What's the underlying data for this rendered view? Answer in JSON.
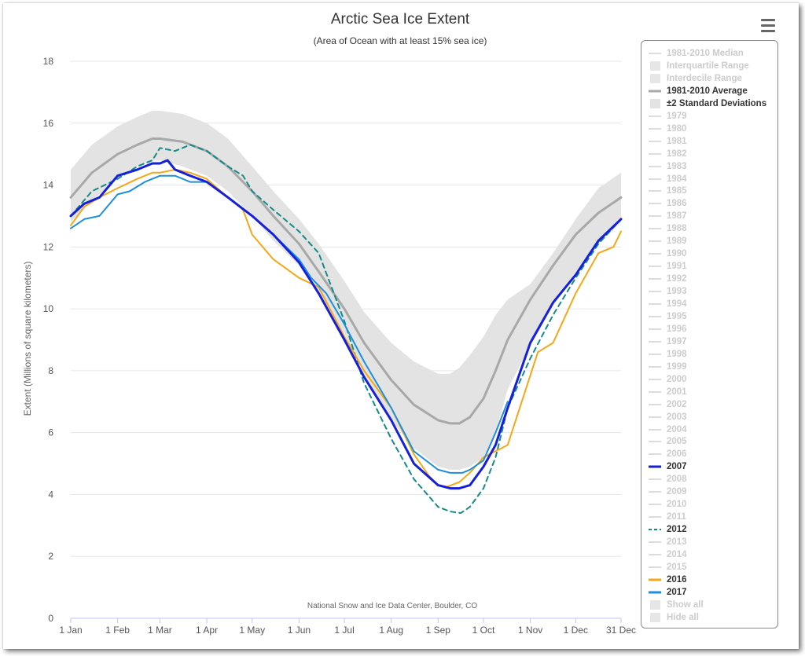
{
  "chart_data": {
    "type": "line",
    "title": "Arctic Sea Ice Extent",
    "subtitle": "(Area of Ocean with at least 15% sea ice)",
    "ylabel": "Extent (Millions of square kilometers)",
    "xlabel": "",
    "credit": "National Snow and Ice Data Center, Boulder, CO",
    "ylim": [
      0,
      18
    ],
    "yticks": [
      0,
      2,
      4,
      6,
      8,
      10,
      12,
      14,
      16,
      18
    ],
    "xlim": [
      1,
      365
    ],
    "xticks": [
      {
        "day": 1,
        "label": "1 Jan"
      },
      {
        "day": 32,
        "label": "1 Feb"
      },
      {
        "day": 60,
        "label": "1 Mar"
      },
      {
        "day": 91,
        "label": "1 Apr"
      },
      {
        "day": 121,
        "label": "1 May"
      },
      {
        "day": 152,
        "label": "1 Jun"
      },
      {
        "day": 182,
        "label": "1 Jul"
      },
      {
        "day": 213,
        "label": "1 Aug"
      },
      {
        "day": 244,
        "label": "1 Sep"
      },
      {
        "day": 274,
        "label": "1 Oct"
      },
      {
        "day": 305,
        "label": "1 Nov"
      },
      {
        "day": 335,
        "label": "1 Dec"
      },
      {
        "day": 365,
        "label": "31 Dec"
      }
    ],
    "grid": true,
    "legend_position": "right",
    "std_band": {
      "name": "±2 Standard Deviations",
      "color": "#e3e3e3",
      "x": [
        1,
        15,
        32,
        45,
        55,
        60,
        75,
        91,
        105,
        121,
        135,
        152,
        165,
        182,
        195,
        213,
        228,
        244,
        252,
        258,
        265,
        274,
        282,
        290,
        305,
        320,
        335,
        350,
        365
      ],
      "upper": [
        14.5,
        15.3,
        15.9,
        16.2,
        16.4,
        16.4,
        16.3,
        16.0,
        15.5,
        14.6,
        13.8,
        12.9,
        12.1,
        10.9,
        9.9,
        8.9,
        8.3,
        7.9,
        7.9,
        8.1,
        8.5,
        9.1,
        9.8,
        10.3,
        10.8,
        11.8,
        12.9,
        13.9,
        14.4
      ],
      "lower": [
        12.8,
        13.5,
        14.2,
        14.6,
        14.8,
        14.8,
        14.6,
        14.3,
        13.8,
        13.0,
        12.2,
        11.4,
        10.5,
        9.2,
        7.9,
        6.4,
        5.5,
        4.9,
        4.8,
        4.8,
        4.9,
        5.2,
        6.0,
        7.4,
        8.8,
        10.1,
        11.2,
        12.1,
        12.8
      ]
    },
    "series": [
      {
        "name": "1981-2010 Average",
        "color": "#a8a8a8",
        "width": 3,
        "dash": "",
        "x": [
          1,
          15,
          32,
          45,
          55,
          60,
          75,
          91,
          105,
          121,
          135,
          152,
          165,
          182,
          195,
          213,
          228,
          244,
          252,
          258,
          265,
          274,
          282,
          290,
          305,
          320,
          335,
          350,
          365
        ],
        "y": [
          13.6,
          14.4,
          15.0,
          15.3,
          15.5,
          15.5,
          15.4,
          15.1,
          14.6,
          13.8,
          13.0,
          12.1,
          11.2,
          10.0,
          8.9,
          7.7,
          6.9,
          6.4,
          6.3,
          6.3,
          6.5,
          7.1,
          8.0,
          9.0,
          10.3,
          11.4,
          12.4,
          13.1,
          13.6
        ]
      },
      {
        "name": "2012",
        "color": "#148a8a",
        "width": 2,
        "dash": "6,5",
        "x": [
          1,
          15,
          32,
          45,
          55,
          60,
          70,
          80,
          91,
          105,
          115,
          121,
          135,
          152,
          165,
          182,
          195,
          213,
          228,
          244,
          252,
          259,
          265,
          274,
          282,
          290,
          305,
          320,
          335,
          350,
          365
        ],
        "y": [
          13.0,
          13.8,
          14.2,
          14.6,
          14.8,
          15.2,
          15.1,
          15.3,
          15.1,
          14.6,
          14.3,
          13.8,
          13.2,
          12.5,
          11.8,
          9.6,
          7.6,
          5.8,
          4.5,
          3.6,
          3.45,
          3.4,
          3.6,
          4.2,
          5.2,
          6.8,
          8.4,
          9.8,
          11.0,
          12.1,
          12.9
        ]
      },
      {
        "name": "2016",
        "color": "#f5a718",
        "width": 2,
        "dash": "",
        "x": [
          1,
          10,
          20,
          32,
          45,
          55,
          60,
          70,
          80,
          91,
          105,
          115,
          121,
          135,
          152,
          165,
          182,
          195,
          213,
          228,
          238,
          244,
          250,
          258,
          265,
          274,
          282,
          290,
          300,
          310,
          320,
          335,
          350,
          360,
          365
        ],
        "y": [
          12.7,
          13.3,
          13.6,
          13.9,
          14.2,
          14.4,
          14.4,
          14.5,
          14.4,
          14.2,
          13.6,
          13.2,
          12.4,
          11.6,
          11.0,
          10.7,
          9.1,
          8.0,
          6.8,
          5.3,
          4.6,
          4.3,
          4.25,
          4.4,
          4.7,
          5.2,
          5.4,
          5.6,
          7.1,
          8.6,
          8.9,
          10.5,
          11.8,
          12.0,
          12.5
        ]
      },
      {
        "name": "2017",
        "color": "#1e8fdc",
        "width": 2,
        "dash": "",
        "x": [
          1,
          10,
          20,
          32,
          40,
          50,
          60,
          70,
          80,
          91,
          105,
          121,
          135,
          152,
          160,
          170,
          182,
          195,
          213,
          228,
          244,
          252,
          260,
          265,
          274,
          282,
          290
        ],
        "y": [
          12.6,
          12.9,
          13.0,
          13.7,
          13.8,
          14.1,
          14.3,
          14.3,
          14.1,
          14.1,
          13.6,
          13.0,
          12.4,
          11.6,
          11.0,
          10.5,
          9.5,
          8.3,
          6.8,
          5.4,
          4.8,
          4.7,
          4.7,
          4.8,
          5.1,
          6.0,
          7.0
        ]
      },
      {
        "name": "2007",
        "color": "#1520dd",
        "width": 3,
        "dash": "",
        "x": [
          1,
          10,
          20,
          32,
          45,
          55,
          60,
          65,
          70,
          80,
          91,
          105,
          121,
          135,
          152,
          165,
          182,
          195,
          213,
          228,
          244,
          252,
          258,
          265,
          274,
          282,
          290,
          305,
          320,
          335,
          350,
          365
        ],
        "y": [
          13.0,
          13.4,
          13.6,
          14.3,
          14.5,
          14.7,
          14.7,
          14.8,
          14.5,
          14.3,
          14.1,
          13.6,
          13.0,
          12.4,
          11.5,
          10.5,
          9.0,
          7.8,
          6.4,
          5.0,
          4.3,
          4.2,
          4.2,
          4.3,
          4.9,
          5.6,
          6.8,
          8.9,
          10.2,
          11.1,
          12.2,
          12.9
        ]
      }
    ]
  },
  "legend": {
    "items": [
      {
        "label": "1981-2010 Median",
        "sym": "line",
        "visible": false
      },
      {
        "label": "Interquartile Range",
        "sym": "box",
        "visible": false
      },
      {
        "label": "Interdecile Range",
        "sym": "box",
        "visible": false
      },
      {
        "label": "1981-2010 Average",
        "sym": "line",
        "visible": true,
        "color": "#a8a8a8"
      },
      {
        "label": "±2 Standard Deviations",
        "sym": "box",
        "visible": true,
        "color": "#e3e3e3"
      },
      {
        "label": "1979",
        "sym": "line",
        "visible": false
      },
      {
        "label": "1980",
        "sym": "line",
        "visible": false
      },
      {
        "label": "1981",
        "sym": "line",
        "visible": false
      },
      {
        "label": "1982",
        "sym": "line",
        "visible": false
      },
      {
        "label": "1983",
        "sym": "line",
        "visible": false
      },
      {
        "label": "1984",
        "sym": "line",
        "visible": false
      },
      {
        "label": "1985",
        "sym": "line",
        "visible": false
      },
      {
        "label": "1986",
        "sym": "line",
        "visible": false
      },
      {
        "label": "1987",
        "sym": "line",
        "visible": false
      },
      {
        "label": "1988",
        "sym": "line",
        "visible": false
      },
      {
        "label": "1989",
        "sym": "line",
        "visible": false
      },
      {
        "label": "1990",
        "sym": "line",
        "visible": false
      },
      {
        "label": "1991",
        "sym": "line",
        "visible": false
      },
      {
        "label": "1992",
        "sym": "line",
        "visible": false
      },
      {
        "label": "1993",
        "sym": "line",
        "visible": false
      },
      {
        "label": "1994",
        "sym": "line",
        "visible": false
      },
      {
        "label": "1995",
        "sym": "line",
        "visible": false
      },
      {
        "label": "1996",
        "sym": "line",
        "visible": false
      },
      {
        "label": "1997",
        "sym": "line",
        "visible": false
      },
      {
        "label": "1998",
        "sym": "line",
        "visible": false
      },
      {
        "label": "1999",
        "sym": "line",
        "visible": false
      },
      {
        "label": "2000",
        "sym": "line",
        "visible": false
      },
      {
        "label": "2001",
        "sym": "line",
        "visible": false
      },
      {
        "label": "2002",
        "sym": "line",
        "visible": false
      },
      {
        "label": "2003",
        "sym": "line",
        "visible": false
      },
      {
        "label": "2004",
        "sym": "line",
        "visible": false
      },
      {
        "label": "2005",
        "sym": "line",
        "visible": false
      },
      {
        "label": "2006",
        "sym": "line",
        "visible": false
      },
      {
        "label": "2007",
        "sym": "line",
        "visible": true,
        "color": "#1520dd"
      },
      {
        "label": "2008",
        "sym": "line",
        "visible": false
      },
      {
        "label": "2009",
        "sym": "line",
        "visible": false
      },
      {
        "label": "2010",
        "sym": "line",
        "visible": false
      },
      {
        "label": "2011",
        "sym": "line",
        "visible": false
      },
      {
        "label": "2012",
        "sym": "dash",
        "visible": true,
        "color": "#148a8a"
      },
      {
        "label": "2013",
        "sym": "line",
        "visible": false
      },
      {
        "label": "2014",
        "sym": "line",
        "visible": false
      },
      {
        "label": "2015",
        "sym": "line",
        "visible": false
      },
      {
        "label": "2016",
        "sym": "line",
        "visible": true,
        "color": "#f5a718"
      },
      {
        "label": "2017",
        "sym": "line",
        "visible": true,
        "color": "#1e8fdc"
      },
      {
        "label": "Show all",
        "sym": "box",
        "visible": false
      },
      {
        "label": "Hide all",
        "sym": "box",
        "visible": false
      }
    ]
  },
  "menu": {
    "icon": "hamburger-menu-icon"
  }
}
